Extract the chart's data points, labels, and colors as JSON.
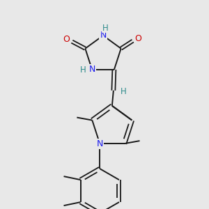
{
  "bg_color": "#e8e8e8",
  "atom_colors": {
    "N": "#1a1aee",
    "O": "#cc0000",
    "H": "#2e8b8b"
  },
  "bond_color": "#1a1a1a",
  "lw": 1.4,
  "lw_double": 1.3,
  "fs": 9,
  "fs_small": 8.5
}
